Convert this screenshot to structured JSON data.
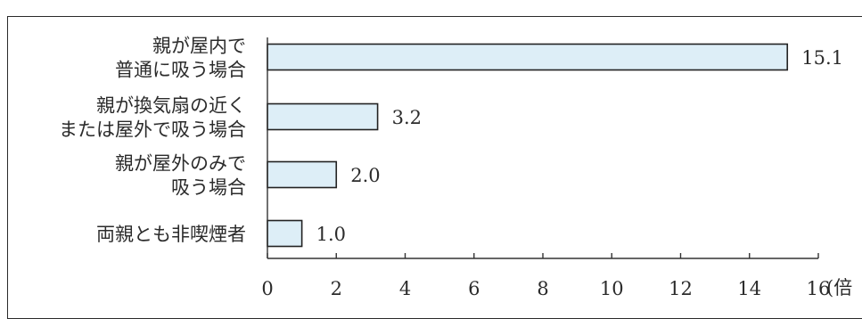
{
  "chart_data": {
    "type": "bar",
    "orientation": "horizontal",
    "categories": [
      [
        "親が屋内で",
        "普通に吸う場合"
      ],
      [
        "親が換気扇の近く",
        "または屋外で吸う場合"
      ],
      [
        "親が屋外のみで",
        "吸う場合"
      ],
      [
        "両親とも非喫煙者"
      ]
    ],
    "values": [
      15.1,
      3.2,
      2.0,
      1.0
    ],
    "value_labels": [
      "15.1",
      "3.2",
      "2.0",
      "1.0"
    ],
    "xlim": [
      0,
      16
    ],
    "xticks": [
      "0",
      "2",
      "4",
      "6",
      "8",
      "10",
      "12",
      "14",
      "16"
    ],
    "unit": "(倍",
    "grid": false,
    "colors": {
      "bar_fill": "#ddeef7",
      "bar_stroke": "#222222",
      "text": "#2b2b2b"
    }
  }
}
